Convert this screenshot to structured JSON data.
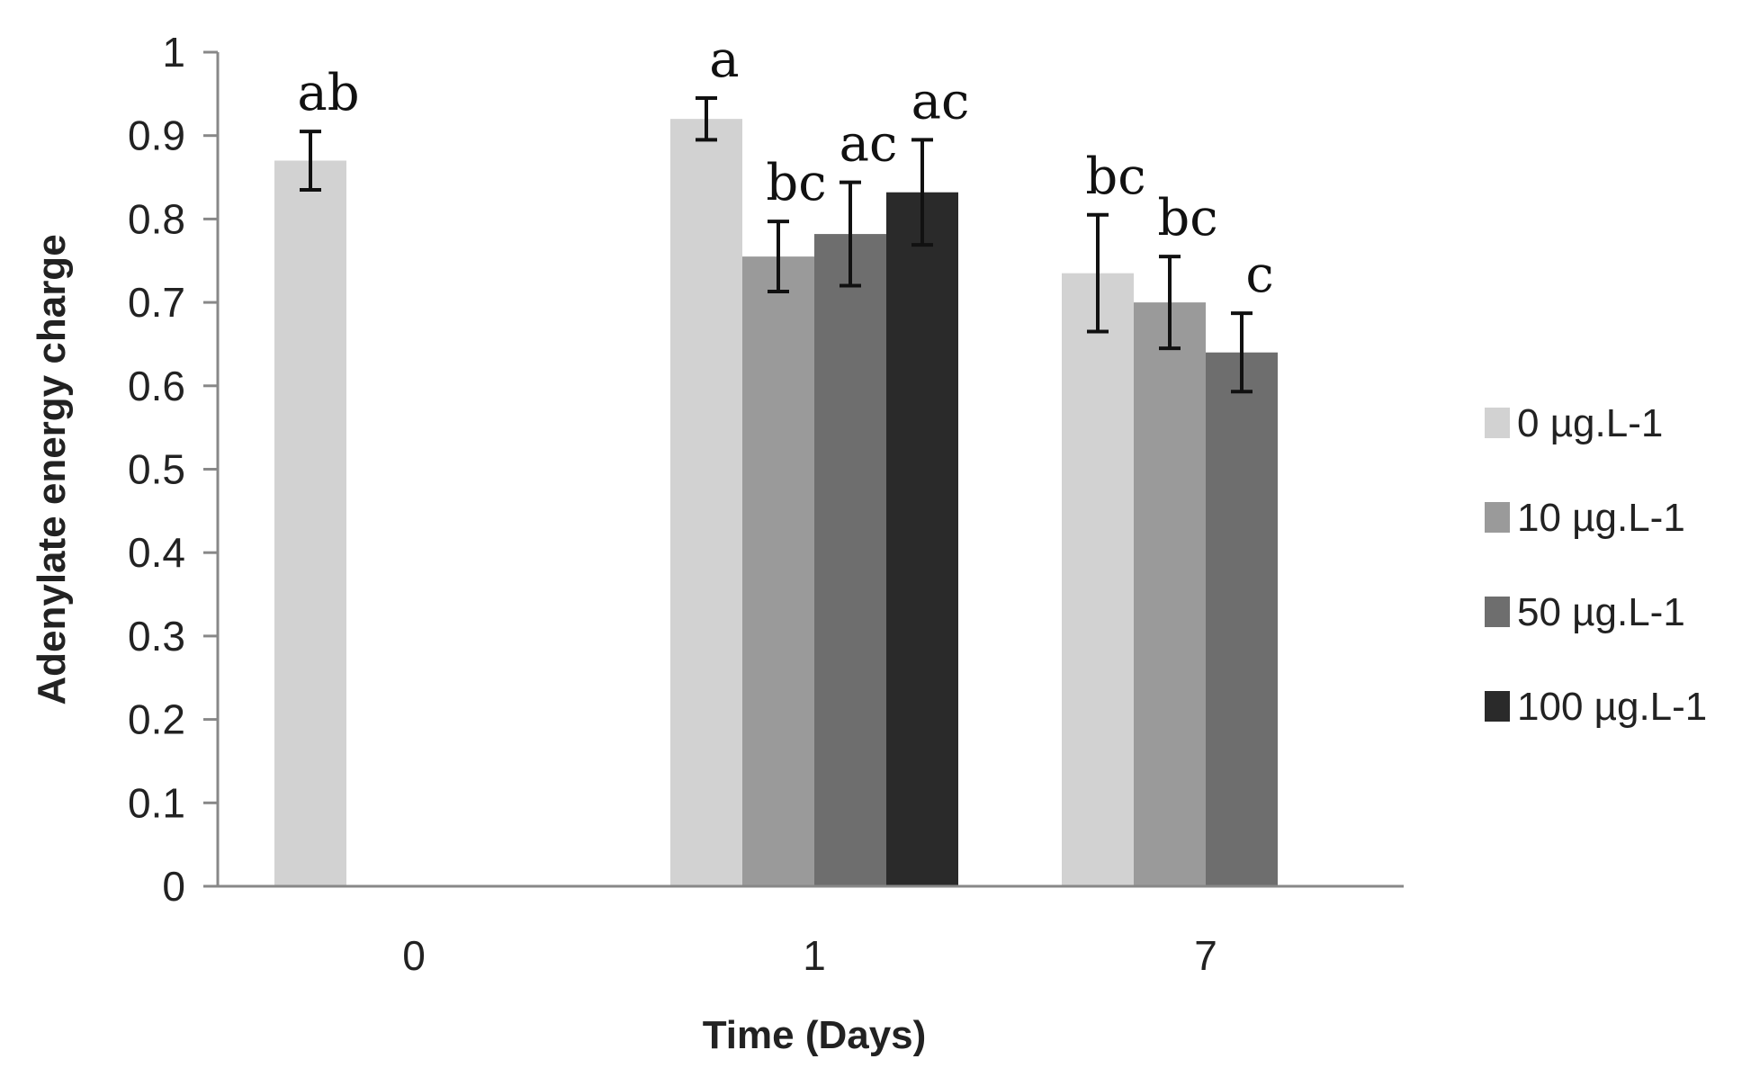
{
  "chart_data": {
    "type": "bar",
    "title": "",
    "xlabel": "Time (Days)",
    "ylabel": "Adenylate energy charge",
    "ylim": [
      0,
      1
    ],
    "yticks": [
      "0",
      "0.1",
      "0.2",
      "0.3",
      "0.4",
      "0.5",
      "0.6",
      "0.7",
      "0.8",
      "0.9",
      "1"
    ],
    "categories": [
      "0",
      "1",
      "7"
    ],
    "legend_position": "right",
    "series": [
      {
        "name": "0 µg.L-1",
        "color": "#d2d2d2",
        "values": [
          0.87,
          0.92,
          0.735
        ],
        "errors": [
          0.035,
          0.025,
          0.07
        ],
        "labels": [
          "ab",
          "a",
          "bc"
        ]
      },
      {
        "name": "10 µg.L-1",
        "color": "#9a9a9a",
        "values": [
          null,
          0.755,
          0.7
        ],
        "errors": [
          null,
          0.042,
          0.055
        ],
        "labels": [
          null,
          "bc",
          "bc"
        ]
      },
      {
        "name": "50 µg.L-1",
        "color": "#6e6e6e",
        "values": [
          null,
          0.782,
          0.64
        ],
        "errors": [
          null,
          0.062,
          0.047
        ],
        "labels": [
          null,
          "ac",
          "c"
        ]
      },
      {
        "name": "100 µg.L-1",
        "color": "#2a2a2a",
        "values": [
          null,
          0.832,
          null
        ],
        "errors": [
          null,
          0.063,
          null
        ],
        "labels": [
          null,
          "ac",
          null
        ]
      }
    ]
  }
}
